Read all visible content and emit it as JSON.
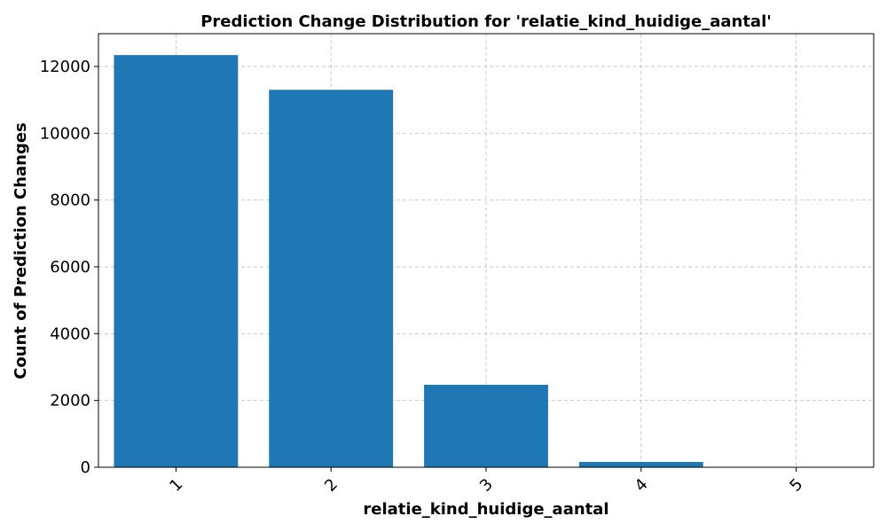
{
  "chart_data": {
    "type": "bar",
    "title": "Prediction Change Distribution for 'relatie_kind_huidige_aantal'",
    "xlabel": "relatie_kind_huidige_aantal",
    "ylabel": "Count of Prediction Changes",
    "categories": [
      "1",
      "2",
      "3",
      "4",
      "5"
    ],
    "values": [
      12340,
      11300,
      2470,
      160,
      5
    ],
    "ylim": [
      0,
      12980
    ],
    "yticks": [
      0,
      2000,
      4000,
      6000,
      8000,
      10000,
      12000
    ],
    "grid": true,
    "bar_color": "#1f77b4"
  }
}
